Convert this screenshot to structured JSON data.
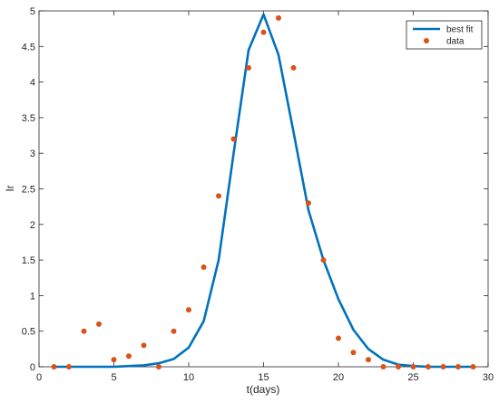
{
  "chart_data": {
    "type": "line",
    "xlabel": "t(days)",
    "ylabel": "Ir",
    "xlim": [
      0,
      30
    ],
    "ylim": [
      0,
      5
    ],
    "xticks": [
      0,
      5,
      10,
      15,
      20,
      25,
      30
    ],
    "yticks": [
      0,
      0.5,
      1,
      1.5,
      2,
      2.5,
      3,
      3.5,
      4,
      4.5,
      5
    ],
    "xtick_labels": [
      "0",
      "5",
      "10",
      "15",
      "20",
      "25",
      "30"
    ],
    "ytick_labels": [
      "0",
      "0.5",
      "1",
      "1.5",
      "2",
      "2.5",
      "3",
      "3.5",
      "4",
      "4.5",
      "5"
    ],
    "grid": false,
    "legend_position": "top-right",
    "series": [
      {
        "name": "best fit",
        "kind": "line",
        "color": "#0072BD",
        "x": [
          1,
          2,
          3,
          4,
          5,
          6,
          7,
          8,
          9,
          10,
          11,
          12,
          13,
          14,
          15,
          16,
          17,
          18,
          19,
          20,
          21,
          22,
          23,
          24,
          25,
          26,
          27,
          28,
          29
        ],
        "y": [
          0,
          0,
          0,
          0,
          0,
          0.01,
          0.02,
          0.05,
          0.11,
          0.27,
          0.64,
          1.5,
          3.0,
          4.45,
          4.95,
          4.38,
          3.3,
          2.2,
          1.5,
          0.95,
          0.52,
          0.25,
          0.1,
          0.03,
          0.01,
          0,
          0,
          0,
          0
        ]
      },
      {
        "name": "data",
        "kind": "scatter",
        "color": "#D95319",
        "x": [
          1,
          2,
          3,
          4,
          5,
          6,
          7,
          8,
          9,
          10,
          11,
          12,
          13,
          14,
          15,
          16,
          17,
          18,
          19,
          20,
          21,
          22,
          23,
          24,
          25,
          26,
          27,
          28,
          29
        ],
        "y": [
          0,
          0,
          0.5,
          0.6,
          0.1,
          0.15,
          0.3,
          0,
          0.5,
          0.8,
          1.4,
          2.4,
          3.2,
          4.2,
          4.7,
          4.9,
          4.2,
          2.3,
          1.5,
          0.4,
          0.2,
          0.1,
          0,
          0,
          0,
          0,
          0,
          0,
          0
        ]
      }
    ]
  }
}
